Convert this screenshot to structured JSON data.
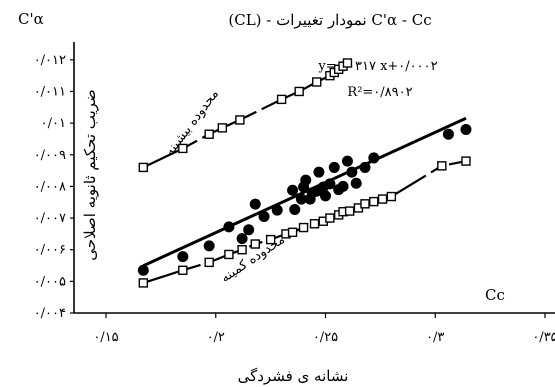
{
  "chart_data": {
    "type": "scatter",
    "title": "(CL) - نمودار تغییرات C'α - Cc",
    "xlabel": "نشانه ی فشردگی",
    "x_axis_end_label": "Cc",
    "y_axis_top_label": "C'α",
    "ylabel": "ضریب تحکیم ثانویه اصلاحی",
    "xlim": [
      0.15,
      0.35
    ],
    "ylim": [
      0.004,
      0.0125
    ],
    "x_ticks": [
      0.15,
      0.2,
      0.25,
      0.3,
      0.35
    ],
    "x_tick_labels": [
      "۰/۱۵",
      "۰/۲",
      "۰/۲۵",
      "۰/۳",
      "۰/۳۵"
    ],
    "y_ticks": [
      0.004,
      0.005,
      0.006,
      0.007,
      0.008,
      0.009,
      0.01,
      0.011,
      0.012
    ],
    "y_tick_labels": [
      "۰/۰۰۴",
      "۰/۰۰۵",
      "۰/۰۰۶",
      "۰/۰۰۷",
      "۰/۰۰۸",
      "۰/۰۰۹",
      "۰/۰۱",
      "۰/۰۱۱",
      "۰/۰۱۲"
    ],
    "grid": false,
    "equation": "y=۰/۰۳۱۷ x+۰/۰۰۰۲",
    "r_squared": "R²=۰/۸۹۰۲",
    "upper_bound_label": "محدوده بیشینه",
    "lower_bound_label": "محدوده کمینه",
    "series": [
      {
        "type": "scatter",
        "marker": "filled-circle",
        "color": "#000000",
        "x": [
          0.167,
          0.185,
          0.197,
          0.206,
          0.212,
          0.215,
          0.218,
          0.222,
          0.228,
          0.235,
          0.236,
          0.239,
          0.24,
          0.241,
          0.243,
          0.244,
          0.246,
          0.247,
          0.249,
          0.25,
          0.252,
          0.254,
          0.256,
          0.258,
          0.26,
          0.262,
          0.264,
          0.268,
          0.272,
          0.306,
          0.314
        ],
        "y": [
          0.00535,
          0.00578,
          0.00612,
          0.00672,
          0.00635,
          0.00663,
          0.00744,
          0.00705,
          0.00725,
          0.00788,
          0.00727,
          0.0076,
          0.00798,
          0.0082,
          0.0076,
          0.0078,
          0.00785,
          0.00845,
          0.00798,
          0.0077,
          0.00808,
          0.0086,
          0.0079,
          0.008,
          0.0088,
          0.00845,
          0.0081,
          0.0086,
          0.0089,
          0.00965,
          0.0098
        ]
      },
      {
        "name": "محدوده بیشینه",
        "type": "bound",
        "marker": "open-square",
        "x": [
          0.167,
          0.185,
          0.197,
          0.203,
          0.211,
          0.23,
          0.238,
          0.246,
          0.252,
          0.254,
          0.256,
          0.258,
          0.26
        ],
        "y": [
          0.0086,
          0.0092,
          0.00965,
          0.00985,
          0.0101,
          0.01075,
          0.011,
          0.0113,
          0.0115,
          0.0116,
          0.0117,
          0.0118,
          0.0119
        ]
      },
      {
        "name": "محدوده کمینه",
        "type": "bound",
        "marker": "open-square",
        "x": [
          0.167,
          0.185,
          0.197,
          0.206,
          0.212,
          0.218,
          0.225,
          0.232,
          0.235,
          0.24,
          0.245,
          0.249,
          0.252,
          0.256,
          0.258,
          0.261,
          0.265,
          0.268,
          0.272,
          0.276,
          0.28,
          0.303,
          0.314
        ],
        "y": [
          0.00495,
          0.00535,
          0.0056,
          0.00585,
          0.006,
          0.00618,
          0.00632,
          0.0065,
          0.00655,
          0.0067,
          0.00682,
          0.0069,
          0.007,
          0.0071,
          0.0072,
          0.00722,
          0.00732,
          0.00745,
          0.00752,
          0.0076,
          0.00768,
          0.00865,
          0.0088
        ]
      },
      {
        "name": "fit",
        "type": "line",
        "slope": 0.0317,
        "intercept": 0.0002,
        "x_range": [
          0.167,
          0.314
        ]
      }
    ]
  }
}
